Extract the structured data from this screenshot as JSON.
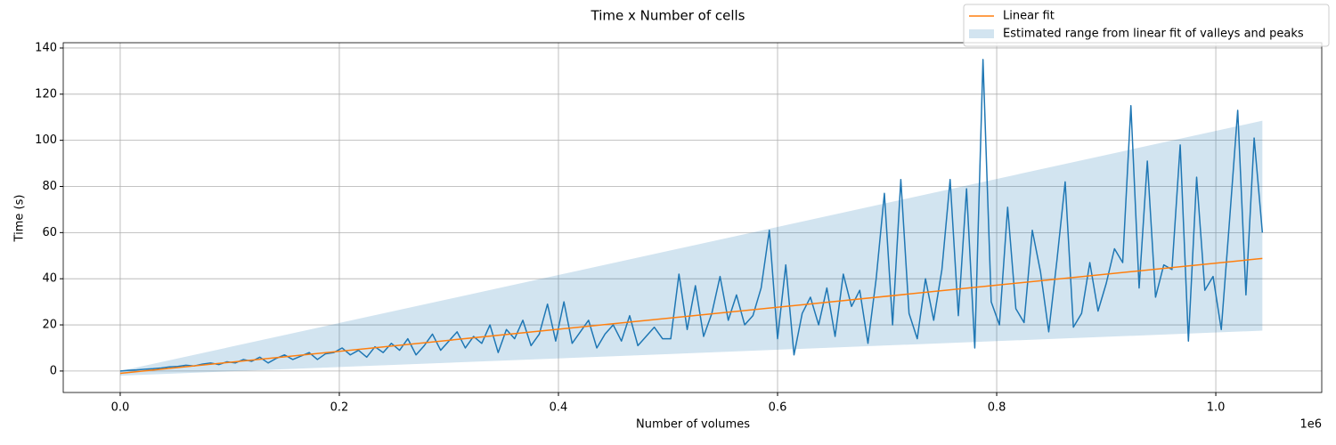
{
  "chart_data": {
    "type": "line",
    "title": "Time x Number of cells",
    "xlabel": "Number of volumes",
    "ylabel": "Time (s)",
    "x_offset_label": "1e6",
    "xlim": [
      -52000,
      1096700
    ],
    "ylim": [
      -9.3,
      142.3
    ],
    "xticks": [
      {
        "value": 0,
        "label": "0.0"
      },
      {
        "value": 200000,
        "label": "0.2"
      },
      {
        "value": 400000,
        "label": "0.4"
      },
      {
        "value": 600000,
        "label": "0.6"
      },
      {
        "value": 800000,
        "label": "0.8"
      },
      {
        "value": 1000000,
        "label": "1.0"
      }
    ],
    "yticks": [
      0,
      20,
      40,
      60,
      80,
      100,
      120,
      140
    ],
    "grid": true,
    "legend": "upper right",
    "fill_between": {
      "name": "Estimated range from linear fit of valleys and peaks",
      "color": "#1f77b4",
      "alpha": 0.2,
      "x": [
        0,
        1042500
      ],
      "lower": [
        -2,
        17.5
      ],
      "upper": [
        0,
        108.5
      ]
    },
    "series": [
      {
        "color": "#1f77b4",
        "x": [
          0,
          7500,
          15000,
          22500,
          30000,
          37500,
          45000,
          52500,
          60000,
          67500,
          75000,
          82500,
          90000,
          97500,
          105000,
          112500,
          120000,
          127500,
          135000,
          142500,
          150000,
          157500,
          165000,
          172500,
          180000,
          187500,
          195000,
          202500,
          210000,
          217500,
          225000,
          232500,
          240000,
          247500,
          255000,
          262500,
          270000,
          277500,
          285000,
          292500,
          300000,
          307500,
          315000,
          322500,
          330000,
          337500,
          345000,
          352500,
          360000,
          367500,
          375000,
          382500,
          390000,
          397500,
          405000,
          412500,
          420000,
          427500,
          435000,
          442500,
          450000,
          457500,
          465000,
          472500,
          480000,
          487500,
          495000,
          502500,
          510000,
          517500,
          525000,
          532500,
          540000,
          547500,
          555000,
          562500,
          570000,
          577500,
          585000,
          592500,
          600000,
          607500,
          615000,
          622500,
          630000,
          637500,
          645000,
          652500,
          660000,
          667500,
          675000,
          682500,
          690000,
          697500,
          705000,
          712500,
          720000,
          727500,
          735000,
          742500,
          750000,
          757500,
          765000,
          772500,
          780000,
          787500,
          795000,
          802500,
          810000,
          817500,
          825000,
          832500,
          840000,
          847500,
          855000,
          862500,
          870000,
          877500,
          885000,
          892500,
          900000,
          907500,
          915000,
          922500,
          930000,
          937500,
          945000,
          952500,
          960000,
          967500,
          975000,
          982500,
          990000,
          997500,
          1005000,
          1012500,
          1020000,
          1027500,
          1035000,
          1042500
        ],
        "values": [
          0,
          0.3,
          0.5,
          0.8,
          1,
          1.3,
          1.8,
          2,
          2.5,
          2.2,
          3,
          3.5,
          2.8,
          4,
          3.5,
          5,
          4.2,
          6,
          3.5,
          5.5,
          7,
          5,
          6.5,
          8,
          5,
          7.5,
          8,
          10,
          7,
          9,
          6,
          10.5,
          8,
          12,
          9,
          14,
          7,
          11,
          16,
          9,
          13,
          17,
          10,
          15,
          12,
          20,
          8,
          18,
          14,
          22,
          11,
          16,
          29,
          13,
          30,
          12,
          17,
          22,
          10,
          16,
          20,
          13,
          24,
          11,
          15,
          19,
          14,
          14,
          42,
          18,
          37,
          15,
          25,
          41,
          22,
          33,
          20,
          24,
          36,
          61,
          14,
          46,
          7,
          25,
          32,
          20,
          36,
          15,
          42,
          28,
          35,
          12,
          40,
          77,
          20,
          83,
          25,
          14,
          40,
          22,
          44,
          83,
          24,
          79,
          10,
          135,
          30,
          20,
          71,
          27,
          21,
          61,
          43,
          17,
          48,
          82,
          19,
          25,
          47,
          26,
          38,
          53,
          47,
          115,
          36,
          91,
          32,
          46,
          44,
          98,
          13,
          84,
          35,
          41,
          18,
          65,
          113,
          33,
          101,
          60
        ]
      },
      {
        "name": "Linear fit",
        "color": "#ff7f0e",
        "x": [
          0,
          1042500
        ],
        "values": [
          -1,
          48.8
        ]
      }
    ]
  }
}
